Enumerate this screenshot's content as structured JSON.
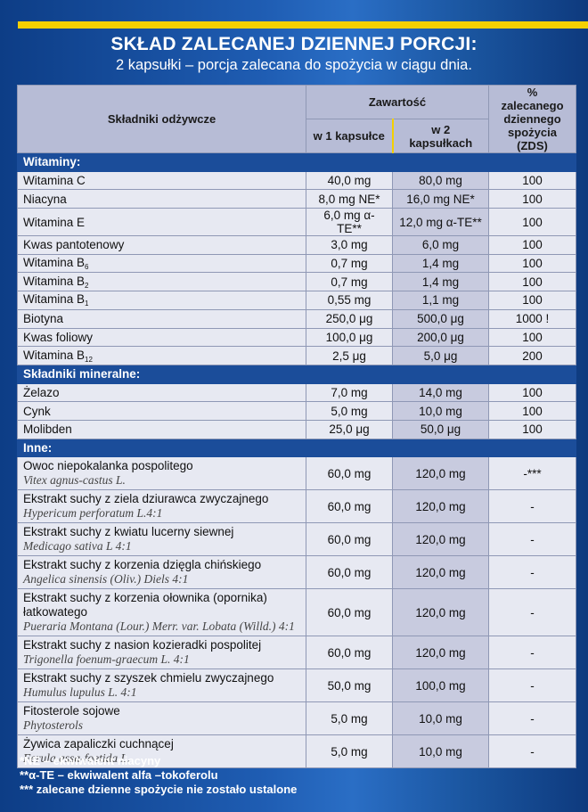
{
  "header": {
    "title": "SKŁAD ZALECANEJ DZIENNEJ PORCJI:",
    "subtitle": "2 kapsułki – porcja zalecana do spożycia w ciągu dnia."
  },
  "table": {
    "col_nutrients": "Składniki odżywcze",
    "col_content": "Zawartość",
    "col_per1": "w 1 kapsułce",
    "col_per2": "w 2 kapsułkach",
    "col_rws": "% zalecanego dziennego spożycia (ZDS)",
    "sections": {
      "vitamins": "Witaminy:",
      "minerals": "Składniki mineralne:",
      "other": "Inne:"
    },
    "vitamins": [
      {
        "name": "Witamina C",
        "v1": "40,0 mg",
        "v2": "80,0 mg",
        "pct": "100"
      },
      {
        "name": "Niacyna",
        "v1": "8,0 mg NE*",
        "v2": "16,0 mg NE*",
        "pct": "100"
      },
      {
        "name": "Witamina E",
        "v1": "6,0 mg α-TE**",
        "v2": "12,0 mg α-TE**",
        "pct": "100"
      },
      {
        "name": "Kwas pantotenowy",
        "v1": "3,0 mg",
        "v2": "6,0 mg",
        "pct": "100"
      },
      {
        "name": "Witamina B",
        "sub": "6",
        "v1": "0,7 mg",
        "v2": "1,4 mg",
        "pct": "100"
      },
      {
        "name": "Witamina B",
        "sub": "2",
        "v1": "0,7 mg",
        "v2": "1,4 mg",
        "pct": "100"
      },
      {
        "name": "Witamina B",
        "sub": "1",
        "v1": "0,55 mg",
        "v2": "1,1 mg",
        "pct": "100"
      },
      {
        "name": "Biotyna",
        "v1": "250,0 μg",
        "v2": "500,0 μg",
        "pct": "1000 !"
      },
      {
        "name": "Kwas foliowy",
        "v1": "100,0 μg",
        "v2": "200,0 μg",
        "pct": "100"
      },
      {
        "name": "Witamina B",
        "sub": "12",
        "v1": "2,5 μg",
        "v2": "5,0 μg",
        "pct": "200"
      }
    ],
    "minerals": [
      {
        "name": "Żelazo",
        "v1": "7,0 mg",
        "v2": "14,0 mg",
        "pct": "100"
      },
      {
        "name": "Cynk",
        "v1": "5,0 mg",
        "v2": "10,0 mg",
        "pct": "100"
      },
      {
        "name": "Molibden",
        "v1": "25,0 μg",
        "v2": "50,0 μg",
        "pct": "100"
      }
    ],
    "other": [
      {
        "name": "Owoc niepokalanka pospolitego",
        "latin": "Vitex agnus-castus L.",
        "v1": "60,0 mg",
        "v2": "120,0 mg",
        "pct": "-***"
      },
      {
        "name": "Ekstrakt suchy z ziela dziurawca zwyczajnego",
        "latin": "Hypericum perforatum L.4:1",
        "v1": "60,0 mg",
        "v2": "120,0 mg",
        "pct": "-"
      },
      {
        "name": "Ekstrakt suchy z kwiatu lucerny siewnej",
        "latin": "Medicago sativa L 4:1",
        "v1": "60,0 mg",
        "v2": "120,0 mg",
        "pct": "-"
      },
      {
        "name": "Ekstrakt suchy z korzenia dzięgla chińskiego",
        "latin": "Angelica sinensis (Oliv.) Diels 4:1",
        "v1": "60,0 mg",
        "v2": "120,0 mg",
        "pct": "-"
      },
      {
        "name": "Ekstrakt suchy z korzenia ołownika (opornika) łatkowatego",
        "latin": "Pueraria Montana (Lour.) Merr. var. Lobata (Willd.) 4:1",
        "v1": "60,0 mg",
        "v2": "120,0 mg",
        "pct": "-"
      },
      {
        "name": "Ekstrakt suchy z nasion kozieradki pospolitej",
        "latin": "Trigonella foenum-graecum L. 4:1",
        "v1": "60,0 mg",
        "v2": "120,0 mg",
        "pct": "-"
      },
      {
        "name": "Ekstrakt suchy z szyszek chmielu zwyczajnego",
        "latin": "Humulus lupulus  L. 4:1",
        "v1": "50,0 mg",
        "v2": "100,0 mg",
        "pct": "-"
      },
      {
        "name": "Fitosterole sojowe",
        "latin": "Phytosterols",
        "v1": "5,0 mg",
        "v2": "10,0 mg",
        "pct": "-"
      },
      {
        "name": "Żywica zapaliczki cuchnącej",
        "latin": "Ferula assa-foetida L.",
        "v1": "5,0 mg",
        "v2": "10,0 mg",
        "pct": "-"
      }
    ]
  },
  "footnotes": [
    "*NE – ekwiwalent niacyny",
    "**α-TE – ekwiwalent alfa –tokoferolu",
    "*** zalecane dzienne spożycie nie zostało ustalone"
  ]
}
